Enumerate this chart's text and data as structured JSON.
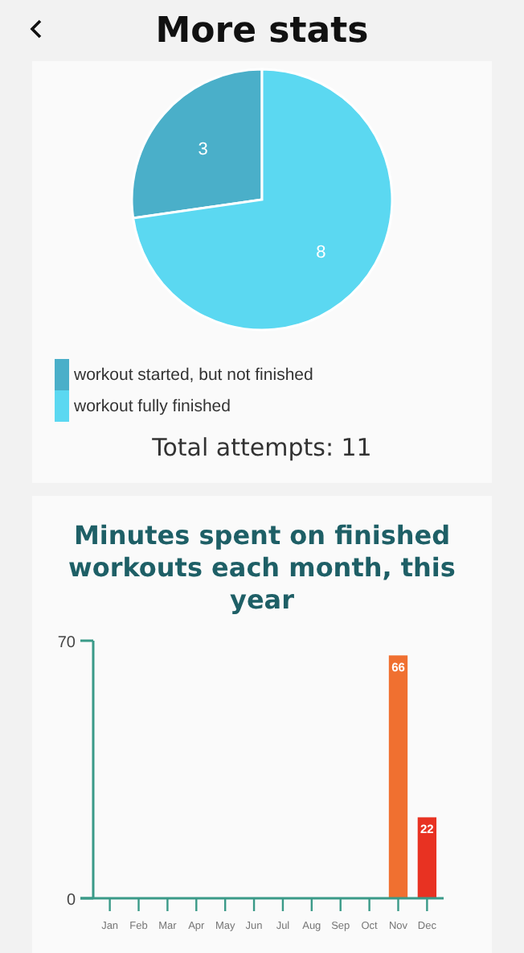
{
  "chart_data": [
    {
      "type": "pie",
      "title": "More stats",
      "categories": [
        "workout started, but not finished",
        "workout fully finished"
      ],
      "values": [
        3,
        8
      ],
      "colors": [
        "#4aafc9",
        "#5bd8f1"
      ],
      "data_labels": true,
      "legend": "bottom",
      "annotations": [
        "Total attempts: 11"
      ]
    },
    {
      "type": "bar",
      "title": "Minutes spent on finished workouts each month, this year",
      "categories": [
        "Jan",
        "Feb",
        "Mar",
        "Apr",
        "May",
        "Jun",
        "Jul",
        "Aug",
        "Sep",
        "Oct",
        "Nov",
        "Dec"
      ],
      "values": [
        0,
        0,
        0,
        0,
        0,
        0,
        0,
        0,
        0,
        0,
        66,
        22
      ],
      "colors": [
        "#f07030",
        "#f07030",
        "#f07030",
        "#f07030",
        "#f07030",
        "#f07030",
        "#f07030",
        "#f07030",
        "#f07030",
        "#f07030",
        "#f07030",
        "#e83222"
      ],
      "value_labels": [
        null,
        null,
        null,
        null,
        null,
        null,
        null,
        null,
        null,
        null,
        "66",
        "22"
      ],
      "ylim": [
        0,
        70
      ],
      "yticks": [
        0,
        70
      ],
      "grid": false
    }
  ]
}
